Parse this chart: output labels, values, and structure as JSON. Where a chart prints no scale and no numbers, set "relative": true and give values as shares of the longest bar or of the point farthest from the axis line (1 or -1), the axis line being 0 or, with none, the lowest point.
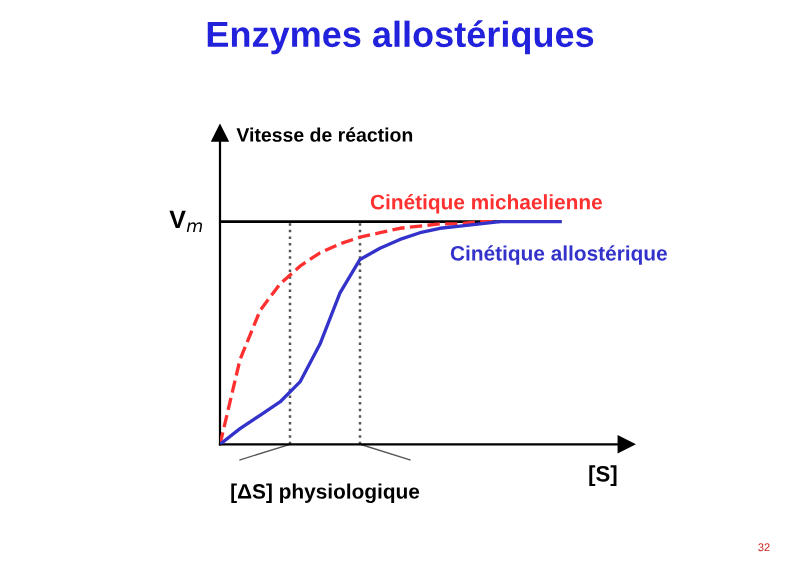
{
  "chart_data": {
    "type": "line",
    "title": "Enzymes allostériques",
    "xlabel": "[S]",
    "ylabel": "Vitesse de réaction",
    "relative": true,
    "categories": [
      null,
      null,
      null,
      null,
      null,
      null,
      null,
      null,
      null,
      null,
      null,
      null,
      null,
      null,
      null,
      null,
      null,
      null
    ],
    "legend": false,
    "series": [
      {
        "name": "Cinétique michaelienne",
        "color": "#ff3030",
        "line_style": "dashed",
        "values": [
          0,
          0.38,
          0.6,
          0.72,
          0.8,
          0.86,
          0.9,
          0.93,
          0.95,
          0.97,
          0.98,
          0.99,
          0.99,
          1,
          1,
          null,
          null,
          null
        ]
      },
      {
        "name": "Cinétique allostérique",
        "color": "#3333cc",
        "line_style": "solid",
        "values": [
          0,
          0.07,
          0.13,
          0.19,
          0.28,
          0.45,
          0.68,
          0.83,
          0.88,
          0.92,
          0.95,
          0.97,
          0.98,
          0.99,
          1,
          1,
          1,
          1
        ]
      }
    ],
    "ref_lines": [
      {
        "axis": "y",
        "value": 1,
        "label": "V$_{m}$",
        "color": "#000000"
      }
    ],
    "annotations": [
      "[ΔS] physiologique",
      "32"
    ]
  }
}
